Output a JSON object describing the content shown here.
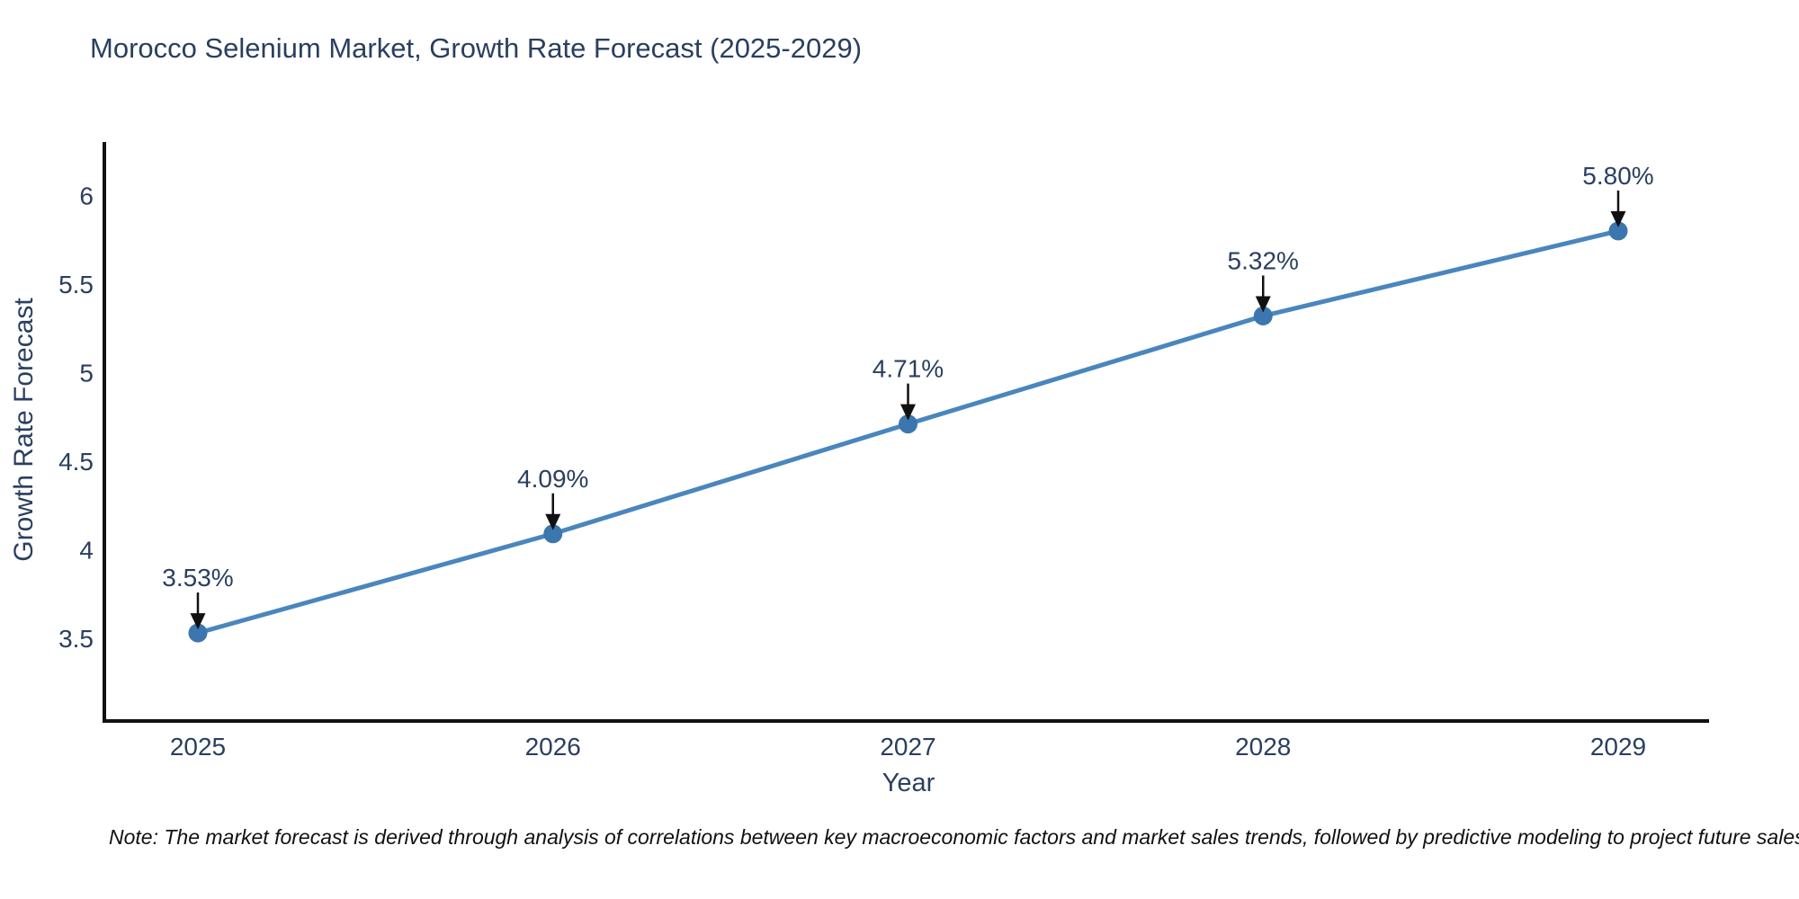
{
  "note": "Note: The market forecast is derived through analysis of correlations between key macroeconomic factors and market sales trends, followed by predictive modeling to project future sales",
  "chart_data": {
    "type": "line",
    "title": "Morocco Selenium Market, Growth Rate Forecast (2025-2029)",
    "xlabel": "Year",
    "ylabel": "Growth Rate Forecast",
    "categories": [
      2025,
      2026,
      2027,
      2028,
      2029
    ],
    "values": [
      3.53,
      4.09,
      4.71,
      5.32,
      5.8
    ],
    "point_labels": [
      "3.53%",
      "4.09%",
      "4.71%",
      "5.32%",
      "5.80%"
    ],
    "yticks": [
      3.5,
      4,
      4.5,
      5,
      5.5,
      6
    ],
    "ytick_labels": [
      "3.5",
      "4",
      "4.5",
      "5",
      "5.5",
      "6"
    ],
    "xtick_labels": [
      "2025",
      "2026",
      "2027",
      "2028",
      "2029"
    ],
    "ylim": [
      3.03,
      6.29
    ],
    "xlim": [
      2024.74,
      2029.26
    ],
    "grid": false,
    "legend": "none",
    "colors": {
      "line": "#4a86be",
      "marker": "#3b76af",
      "text": "#2a3f5f",
      "axis": "#111111",
      "arrow": "#111111",
      "note": "#111111",
      "background": "#ffffff"
    }
  }
}
